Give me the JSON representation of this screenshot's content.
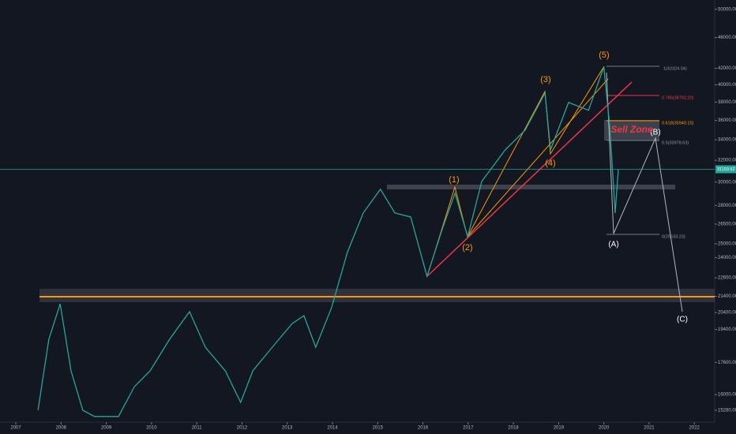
{
  "chart_data": {
    "type": "line",
    "color": "#26a69a",
    "log_scale": true,
    "x": [
      2007.49,
      2007.73,
      2007.98,
      2008.22,
      2008.48,
      2008.74,
      2009.27,
      2009.62,
      2009.97,
      2010.4,
      2010.84,
      2011.19,
      2011.63,
      2011.97,
      2012.24,
      2012.67,
      2013.11,
      2013.37,
      2013.63,
      2013.98,
      2014.33,
      2014.68,
      2015.06,
      2015.38,
      2015.73,
      2016.09,
      2016.43,
      2016.71,
      2016.99,
      2017.3,
      2017.82,
      2018.26,
      2018.7,
      2018.82,
      2019.22,
      2019.66,
      2020.0,
      2020.13,
      2020.25,
      2020.32
    ],
    "values": [
      15280,
      18850,
      20930,
      17170,
      15280,
      15000,
      15000,
      16380,
      17170,
      18850,
      20450,
      18410,
      17170,
      15640,
      17170,
      18410,
      19745,
      20210,
      18410,
      20690,
      24370,
      27380,
      29370,
      27380,
      27060,
      22710,
      26130,
      29030,
      25530,
      30060,
      33000,
      34990,
      39040,
      33000,
      37970,
      37090,
      42170,
      35400,
      27380,
      31130
    ],
    "xlim": [
      2006.65,
      2022.45
    ],
    "xticks": [
      2007,
      2008,
      2009,
      2010,
      2011,
      2012,
      2013,
      2014,
      2015,
      2016,
      2017,
      2018,
      2019,
      2020,
      2021,
      2022
    ],
    "ylim": [
      14750,
      51400
    ],
    "yticks": [
      {
        "value": 15280,
        "label": "15280.00"
      },
      {
        "value": 16000,
        "label": "16000.00"
      },
      {
        "value": 17600,
        "label": "17600.00"
      },
      {
        "value": 19400,
        "label": "19400.00"
      },
      {
        "value": 20400,
        "label": "20400.00"
      },
      {
        "value": 21400,
        "label": "21400.00"
      },
      {
        "value": 22600,
        "label": "22600.00"
      },
      {
        "value": 24000,
        "label": "24000.00"
      },
      {
        "value": 25000,
        "label": "25000.00"
      },
      {
        "value": 26500,
        "label": "26500.00"
      },
      {
        "value": 28000,
        "label": "28000.00"
      },
      {
        "value": 30000,
        "label": "30000.00"
      },
      {
        "value": 32000,
        "label": "32000.00"
      },
      {
        "value": 34000,
        "label": "34000.00"
      },
      {
        "value": 36000,
        "label": "36000.00"
      },
      {
        "value": 38000,
        "label": "38000.00"
      },
      {
        "value": 40000,
        "label": "40000.00"
      },
      {
        "value": 42000,
        "label": "42000.00"
      },
      {
        "value": 46000,
        "label": "46000.00"
      },
      {
        "value": 50000,
        "label": "50000.00"
      }
    ],
    "last_price": 31159.62,
    "last_price_color": "#26a69a",
    "annotations": [
      "(1)",
      "(2)",
      "(3)",
      "(4)",
      "(5)",
      "(A)",
      "(B)",
      "(C)",
      "Sell Zone",
      "1(42324.04)",
      "0.786(38792.20)",
      "0.618(35940.15)",
      "0.5(33978.63)",
      "0(25633.23)"
    ]
  }
}
